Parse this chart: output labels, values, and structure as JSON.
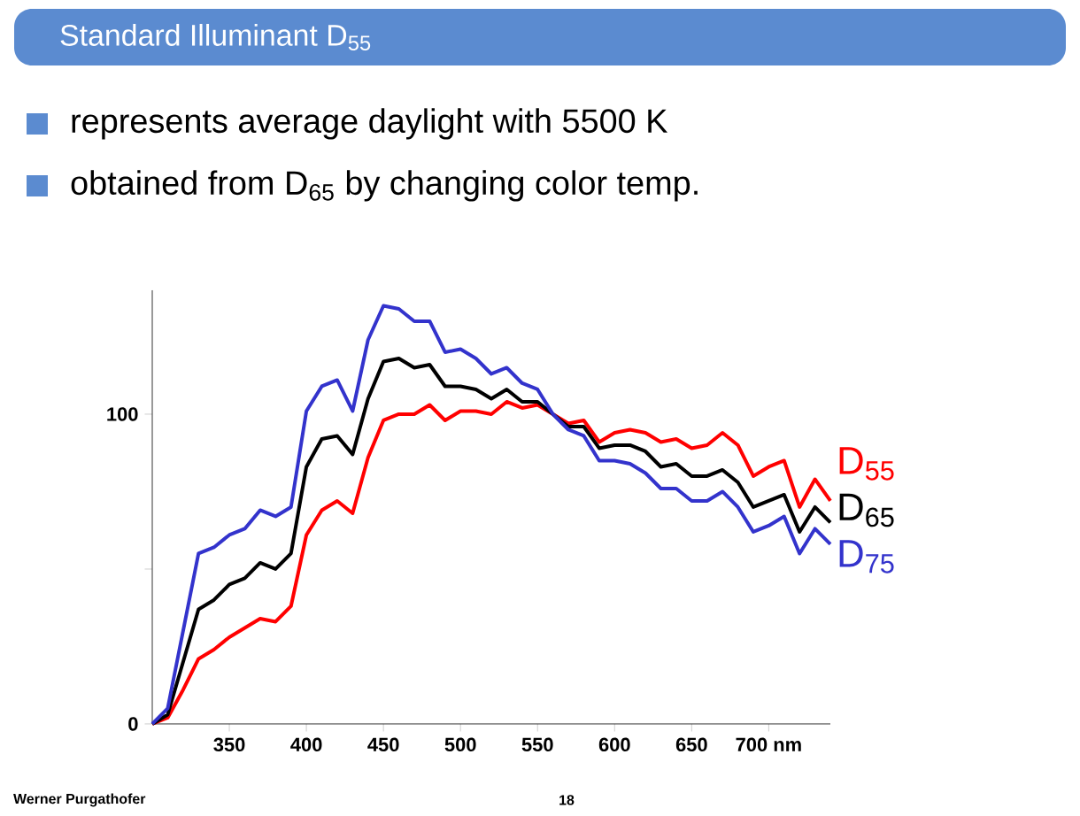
{
  "chart_data": {
    "type": "line",
    "title": "Standard Illuminant D$_{55}$",
    "annotations": [
      "represents average daylight with 5500 K",
      "obtained from D$_{65}$ by changing color temp.",
      "Werner Purgathofer",
      "18"
    ],
    "x": [
      300,
      310,
      320,
      330,
      340,
      350,
      360,
      370,
      380,
      390,
      400,
      410,
      420,
      430,
      440,
      450,
      460,
      470,
      480,
      490,
      500,
      510,
      520,
      530,
      540,
      550,
      560,
      570,
      580,
      590,
      600,
      610,
      620,
      630,
      640,
      650,
      660,
      670,
      680,
      690,
      700,
      710,
      720,
      730,
      740
    ],
    "series": [
      {
        "name": "D$_{55}$",
        "color": "#ff0000",
        "values": [
          0,
          2,
          11,
          21,
          24,
          28,
          31,
          34,
          33,
          38,
          61,
          69,
          72,
          68,
          86,
          98,
          100,
          100,
          103,
          98,
          101,
          101,
          100,
          104,
          102,
          103,
          100,
          97,
          98,
          91,
          94,
          95,
          94,
          91,
          92,
          89,
          90,
          94,
          90,
          80,
          83,
          85,
          70,
          79,
          72
        ]
      },
      {
        "name": "D$_{65}$",
        "color": "#000000",
        "values": [
          0,
          3,
          20,
          37,
          40,
          45,
          47,
          52,
          50,
          55,
          83,
          92,
          93,
          87,
          105,
          117,
          118,
          115,
          116,
          109,
          109,
          108,
          105,
          108,
          104,
          104,
          100,
          96,
          96,
          89,
          90,
          90,
          88,
          83,
          84,
          80,
          80,
          82,
          78,
          70,
          72,
          74,
          62,
          70,
          65
        ]
      },
      {
        "name": "D$_{75}$",
        "color": "#3333cc",
        "values": [
          0,
          5,
          30,
          55,
          57,
          61,
          63,
          69,
          67,
          70,
          101,
          109,
          111,
          101,
          124,
          135,
          134,
          130,
          130,
          120,
          121,
          118,
          113,
          115,
          110,
          108,
          100,
          95,
          93,
          85,
          85,
          84,
          81,
          76,
          76,
          72,
          72,
          75,
          70,
          62,
          64,
          67,
          55,
          63,
          58
        ]
      }
    ],
    "xlim": [
      300,
      740
    ],
    "ylim": [
      0,
      140
    ],
    "xticks": [
      350,
      400,
      450,
      500,
      550,
      600,
      650,
      {
        "value": 700,
        "label": "700 nm"
      }
    ],
    "yticks": [
      0,
      {
        "value": 50,
        "label": null
      },
      100
    ],
    "line_style": "solid"
  }
}
